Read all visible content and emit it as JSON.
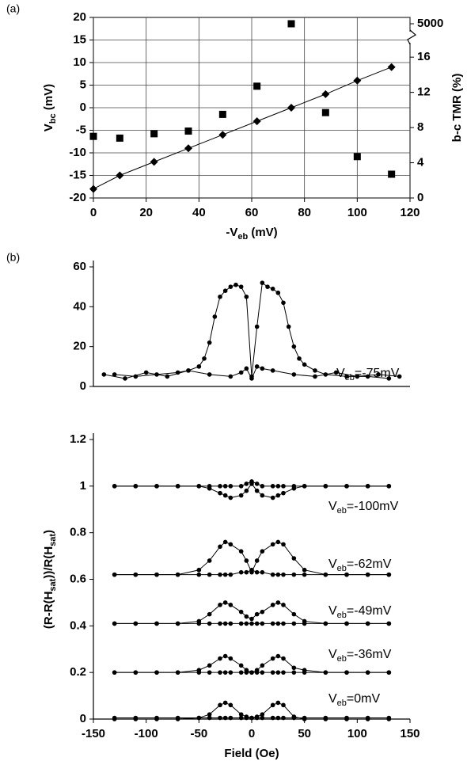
{
  "chart_data": [
    {
      "type": "scatter",
      "panel_label": "(a)",
      "xlabel": [
        "-V",
        "eb",
        " (mV)"
      ],
      "ylabel": [
        "V",
        "bc",
        " (mV)"
      ],
      "y2label": [
        "b-c TMR (%)"
      ],
      "x": [
        0,
        10,
        23,
        36,
        49,
        62,
        75,
        88,
        100,
        113
      ],
      "xlim": [
        0,
        120
      ],
      "xticks": [
        0,
        20,
        40,
        60,
        80,
        100,
        120
      ],
      "ylim": [
        -20,
        20
      ],
      "yticks": [
        -20,
        -15,
        -10,
        -5,
        0,
        5,
        10,
        15,
        20
      ],
      "y2lim": [
        0,
        5000
      ],
      "y2ticks": [
        0,
        4,
        8,
        12,
        16,
        5000
      ],
      "axis_break": "y2",
      "grid": true,
      "series": [
        {
          "marker": "diamond",
          "line": true,
          "color": "#000",
          "values": [
            -18,
            -15,
            -12,
            -9,
            -6,
            -3,
            0,
            3,
            6,
            9
          ]
        },
        {
          "marker": "square",
          "axis": "y2",
          "color": "#000",
          "values": [
            7,
            6.8,
            7.3,
            7.6,
            9.5,
            12.7,
            5000,
            9.7,
            4.7,
            2.7
          ]
        }
      ]
    },
    {
      "type": "line",
      "panel_label": "(b)",
      "xlim": [
        -150,
        150
      ],
      "ylim": [
        0,
        60
      ],
      "yticks": [
        0,
        20,
        40,
        60
      ],
      "series": [
        {
          "name": [
            "V",
            "eb",
            "=-75mV"
          ],
          "color": "#000",
          "x": [
            -130,
            -110,
            -90,
            -70,
            -60,
            -50,
            -45,
            -40,
            -35,
            -30,
            -25,
            -20,
            -15,
            -10,
            -5,
            0,
            5,
            10,
            15,
            20,
            25,
            30,
            35,
            40,
            45,
            50,
            60,
            70,
            90,
            110,
            130
          ],
          "values": [
            6,
            5,
            6,
            7,
            8,
            10,
            14,
            22,
            35,
            45,
            48,
            50,
            51,
            50,
            45,
            5,
            30,
            52,
            50,
            49,
            47,
            42,
            30,
            20,
            14,
            11,
            8,
            6,
            5,
            5,
            4
          ],
          "baseline_x": [
            -140,
            -120,
            -100,
            -80,
            -60,
            -40,
            -20,
            -10,
            -5,
            0,
            5,
            10,
            20,
            40,
            60,
            80,
            100,
            120,
            140
          ],
          "baseline": [
            6,
            4,
            7,
            5,
            8,
            6,
            5,
            7,
            9,
            4,
            10,
            9,
            8,
            6,
            5,
            7,
            5,
            6,
            5
          ]
        }
      ]
    },
    {
      "type": "line",
      "xlabel": [
        "Field (Oe)"
      ],
      "ylabel": [
        "(R-R(H",
        "sat",
        "))/R(H",
        "sat",
        ")"
      ],
      "xlim": [
        -150,
        150
      ],
      "xticks": [
        -150,
        -100,
        -50,
        0,
        50,
        100,
        150
      ],
      "ylim": [
        0,
        1.2
      ],
      "yticks": [
        0,
        0.2,
        0.4,
        0.6,
        0.8,
        1,
        1.2
      ],
      "x": [
        -130,
        -110,
        -90,
        -70,
        -50,
        -40,
        -30,
        -25,
        -20,
        -10,
        -5,
        0,
        5,
        10,
        20,
        25,
        30,
        40,
        50,
        70,
        90,
        110,
        130
      ],
      "series": [
        {
          "name": [
            "V",
            "eb",
            "=0mV"
          ],
          "color": "#000",
          "values": [
            0,
            0,
            0,
            0,
            0.005,
            0.02,
            0.06,
            0.07,
            0.06,
            0.02,
            0.01,
            0.005,
            0.01,
            0.02,
            0.06,
            0.07,
            0.06,
            0.01,
            0,
            0,
            0,
            0,
            0
          ],
          "baseline": [
            0.005,
            0.005,
            0.005,
            0.005,
            0.005,
            0.005,
            0.005,
            0.005,
            0.005,
            0.005,
            0.005,
            0.005,
            0.005,
            0.005,
            0.005,
            0.005,
            0.005,
            0.005,
            0.005,
            0.005,
            0.005,
            0.005,
            0.005
          ]
        },
        {
          "name": [
            "V",
            "eb",
            "=-36mV"
          ],
          "color": "#000",
          "values": [
            0.2,
            0.2,
            0.2,
            0.2,
            0.21,
            0.23,
            0.26,
            0.27,
            0.26,
            0.23,
            0.21,
            0.2,
            0.21,
            0.23,
            0.26,
            0.27,
            0.26,
            0.22,
            0.21,
            0.2,
            0.2,
            0.2,
            0.2
          ],
          "baseline": [
            0.2,
            0.2,
            0.2,
            0.2,
            0.2,
            0.2,
            0.2,
            0.2,
            0.2,
            0.2,
            0.2,
            0.2,
            0.2,
            0.2,
            0.2,
            0.2,
            0.2,
            0.2,
            0.2,
            0.2,
            0.2,
            0.2,
            0.2
          ]
        },
        {
          "name": [
            "V",
            "eb",
            "=-49mV"
          ],
          "color": "#000",
          "values": [
            0.41,
            0.41,
            0.41,
            0.41,
            0.42,
            0.45,
            0.49,
            0.5,
            0.49,
            0.46,
            0.44,
            0.43,
            0.45,
            0.46,
            0.49,
            0.5,
            0.49,
            0.45,
            0.42,
            0.41,
            0.41,
            0.41,
            0.41
          ],
          "baseline": [
            0.41,
            0.41,
            0.41,
            0.41,
            0.41,
            0.41,
            0.41,
            0.41,
            0.41,
            0.41,
            0.41,
            0.41,
            0.41,
            0.41,
            0.41,
            0.41,
            0.41,
            0.41,
            0.41,
            0.41,
            0.41,
            0.41,
            0.41
          ]
        },
        {
          "name": [
            "V",
            "eb",
            "=-62mV"
          ],
          "color": "#000",
          "values": [
            0.62,
            0.62,
            0.62,
            0.62,
            0.64,
            0.68,
            0.74,
            0.76,
            0.75,
            0.72,
            0.68,
            0.63,
            0.68,
            0.72,
            0.75,
            0.76,
            0.75,
            0.69,
            0.64,
            0.62,
            0.62,
            0.62,
            0.62
          ],
          "baseline": [
            0.62,
            0.62,
            0.62,
            0.62,
            0.62,
            0.62,
            0.62,
            0.62,
            0.62,
            0.63,
            0.63,
            0.64,
            0.63,
            0.63,
            0.62,
            0.62,
            0.62,
            0.62,
            0.62,
            0.62,
            0.62,
            0.62,
            0.62
          ]
        },
        {
          "name": [
            "V",
            "eb",
            "=-100mV"
          ],
          "color": "#000",
          "values": [
            1,
            1,
            1,
            1,
            1,
            0.99,
            0.97,
            0.96,
            0.95,
            0.96,
            0.98,
            1.01,
            0.98,
            0.96,
            0.95,
            0.96,
            0.97,
            0.99,
            1,
            1,
            1,
            1,
            1
          ],
          "baseline": [
            1,
            1,
            1,
            1,
            1,
            1,
            1,
            1,
            1,
            1,
            1.01,
            1.02,
            1.01,
            1,
            1,
            1,
            1,
            1,
            1,
            1,
            1,
            1,
            1
          ]
        }
      ]
    }
  ]
}
